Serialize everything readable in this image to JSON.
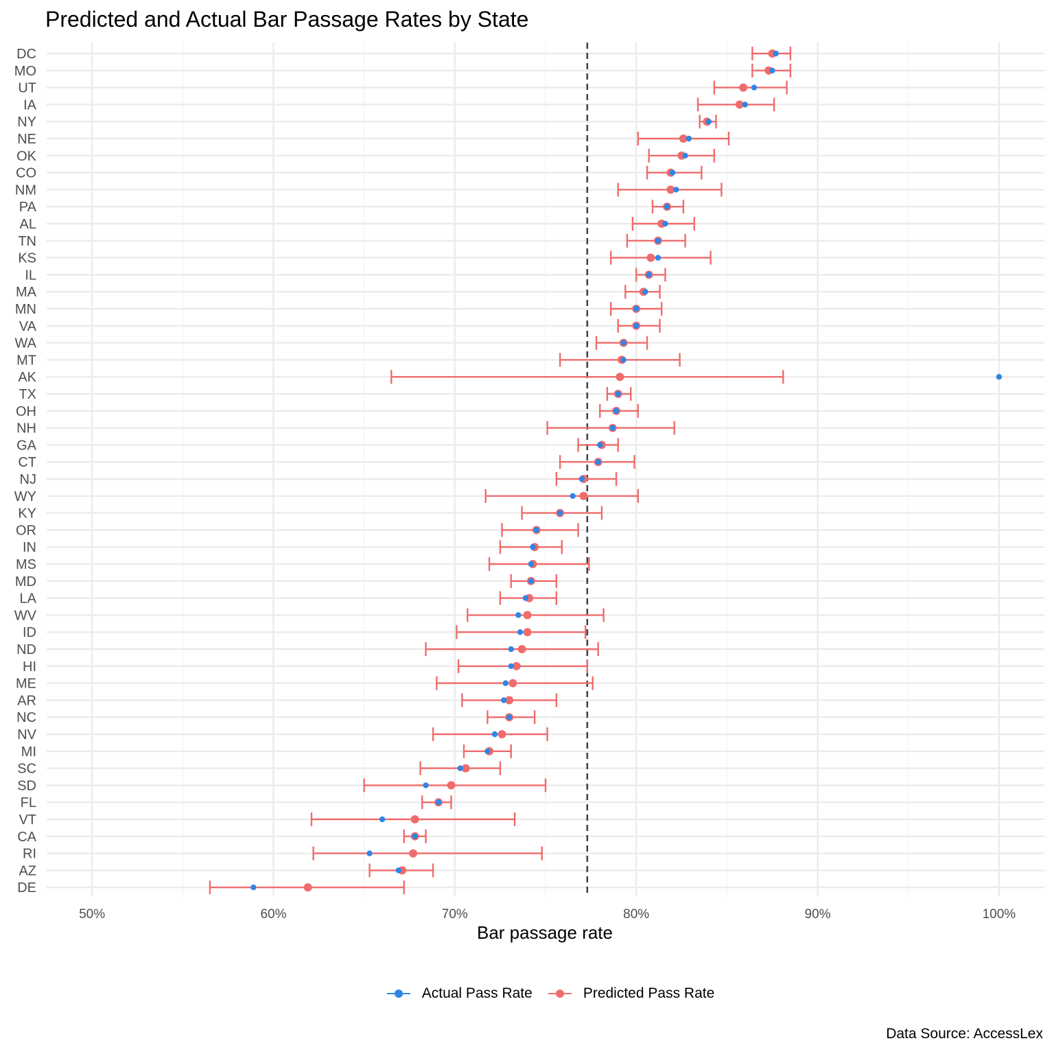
{
  "chart_data": {
    "type": "dot-errorbar",
    "title": "Predicted and Actual Bar Passage Rates by State",
    "xlabel": "Bar passage rate",
    "ylabel": "",
    "caption": "Data Source: AccessLex",
    "xlim": [
      0.475,
      1.025
    ],
    "x_ticks": [
      0.5,
      0.6,
      0.7,
      0.8,
      0.9,
      1.0
    ],
    "x_tick_labels": [
      "50%",
      "60%",
      "70%",
      "80%",
      "90%",
      "100%"
    ],
    "reference_line": 0.773,
    "grid": true,
    "legend_position": "bottom",
    "series_colors": {
      "actual": "#2E86E6",
      "predicted": "#EF6C6C",
      "reference": "#444444"
    },
    "series": [
      {
        "name": "Actual Pass Rate",
        "color": "#2E86E6"
      },
      {
        "name": "Predicted Pass Rate",
        "color": "#EF6C6C"
      }
    ],
    "states": [
      "DC",
      "MO",
      "UT",
      "IA",
      "NY",
      "NE",
      "OK",
      "CO",
      "NM",
      "PA",
      "AL",
      "TN",
      "KS",
      "IL",
      "MA",
      "MN",
      "VA",
      "WA",
      "MT",
      "AK",
      "TX",
      "OH",
      "NH",
      "GA",
      "CT",
      "NJ",
      "WY",
      "KY",
      "OR",
      "IN",
      "MS",
      "MD",
      "LA",
      "WV",
      "ID",
      "ND",
      "HI",
      "ME",
      "AR",
      "NC",
      "NV",
      "MI",
      "SC",
      "SD",
      "FL",
      "VT",
      "CA",
      "RI",
      "AZ",
      "DE"
    ],
    "predicted": [
      0.875,
      0.873,
      0.859,
      0.857,
      0.839,
      0.826,
      0.825,
      0.819,
      0.819,
      0.817,
      0.814,
      0.812,
      0.808,
      0.807,
      0.804,
      0.8,
      0.8,
      0.793,
      0.792,
      0.791,
      0.79,
      0.789,
      0.787,
      0.781,
      0.779,
      0.771,
      0.771,
      0.758,
      0.745,
      0.744,
      0.743,
      0.742,
      0.741,
      0.74,
      0.74,
      0.737,
      0.734,
      0.732,
      0.73,
      0.73,
      0.726,
      0.719,
      0.706,
      0.698,
      0.691,
      0.678,
      0.678,
      0.677,
      0.671,
      0.619
    ],
    "actual": [
      0.877,
      0.875,
      0.865,
      0.86,
      0.84,
      0.829,
      0.827,
      0.82,
      0.822,
      0.817,
      0.816,
      0.812,
      0.812,
      0.807,
      0.805,
      0.8,
      0.8,
      0.793,
      0.793,
      1.0,
      0.79,
      0.789,
      0.787,
      0.78,
      0.779,
      0.77,
      0.765,
      0.758,
      0.745,
      0.743,
      0.742,
      0.742,
      0.739,
      0.735,
      0.736,
      0.731,
      0.731,
      0.728,
      0.727,
      0.73,
      0.722,
      0.718,
      0.703,
      0.684,
      0.691,
      0.66,
      0.678,
      0.653,
      0.669,
      0.589
    ],
    "lower": [
      0.864,
      0.864,
      0.843,
      0.834,
      0.835,
      0.801,
      0.807,
      0.806,
      0.79,
      0.809,
      0.798,
      0.795,
      0.786,
      0.8,
      0.794,
      0.786,
      0.79,
      0.778,
      0.758,
      0.665,
      0.784,
      0.78,
      0.751,
      0.768,
      0.758,
      0.756,
      0.717,
      0.737,
      0.726,
      0.725,
      0.719,
      0.731,
      0.725,
      0.707,
      0.701,
      0.684,
      0.702,
      0.69,
      0.704,
      0.718,
      0.688,
      0.705,
      0.681,
      0.65,
      0.682,
      0.621,
      0.672,
      0.622,
      0.653,
      0.565
    ],
    "upper": [
      0.885,
      0.885,
      0.883,
      0.876,
      0.844,
      0.851,
      0.843,
      0.836,
      0.847,
      0.826,
      0.832,
      0.827,
      0.841,
      0.816,
      0.813,
      0.814,
      0.813,
      0.806,
      0.824,
      0.881,
      0.797,
      0.801,
      0.821,
      0.79,
      0.799,
      0.789,
      0.801,
      0.781,
      0.768,
      0.759,
      0.774,
      0.756,
      0.756,
      0.782,
      0.772,
      0.779,
      0.773,
      0.776,
      0.756,
      0.744,
      0.751,
      0.731,
      0.725,
      0.75,
      0.698,
      0.733,
      0.684,
      0.748,
      0.688,
      0.672
    ]
  }
}
